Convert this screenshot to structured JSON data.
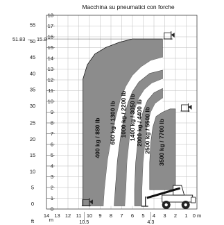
{
  "chart_data": {
    "type": "area",
    "title": "Macchina su pneumatici con forche",
    "y_unit_m": "m",
    "y_unit_ft": "ft",
    "x_unit": "m",
    "xlim": [
      14,
      0
    ],
    "ylim": [
      0,
      18
    ],
    "grid": true,
    "x_ticks": [
      14,
      13,
      12,
      11,
      10,
      9,
      8,
      7,
      6,
      5,
      4,
      3,
      2,
      1,
      0
    ],
    "x_tick_labels": [
      "14",
      "13",
      "12",
      "11",
      "10",
      "9",
      "8",
      "7",
      "6",
      "5",
      "4",
      "3",
      "2",
      "1",
      "0 m"
    ],
    "y_ticks": [
      0,
      1,
      2,
      3,
      4,
      5,
      6,
      7,
      8,
      9,
      10,
      11,
      12,
      13,
      14,
      15,
      16,
      17,
      18
    ],
    "ft_ticks": [
      {
        "label": "0",
        "m": 0.5
      },
      {
        "label": "5",
        "m": 2.0
      },
      {
        "label": "10",
        "m": 3.5
      },
      {
        "label": "15",
        "m": 5.0
      },
      {
        "label": "20",
        "m": 6.5
      },
      {
        "label": "25",
        "m": 8.0
      },
      {
        "label": "30",
        "m": 9.6
      },
      {
        "label": "35",
        "m": 11.1
      },
      {
        "label": "40",
        "m": 12.6
      },
      {
        "label": "45",
        "m": 14.1
      },
      {
        "label": "50",
        "m": 15.6
      },
      {
        "label": "55",
        "m": 17.1
      }
    ],
    "max_height_callout": {
      "ft": "51.83",
      "sep": "—",
      "m": "15.8",
      "y": 15.8
    },
    "sub_labels": [
      {
        "text": "10.5",
        "x": 10.5
      },
      {
        "text": "4.3",
        "x": 4.3
      }
    ],
    "series": [
      {
        "name": "400 kg / 880 lb",
        "color": "#8c8c8c",
        "outline": [
          [
            10.6,
            0.3
          ],
          [
            10.6,
            12.1
          ],
          [
            10.2,
            13.4
          ],
          [
            9.5,
            14.4
          ],
          [
            8.5,
            15.0
          ],
          [
            7.2,
            15.5
          ],
          [
            6.0,
            15.8
          ],
          [
            3.2,
            15.8
          ],
          [
            3.2,
            14.1
          ],
          [
            4.3,
            13.8
          ],
          [
            5.2,
            13.2
          ],
          [
            6.0,
            12.4
          ],
          [
            6.6,
            11.4
          ],
          [
            7.1,
            10.2
          ],
          [
            7.5,
            8.7
          ],
          [
            7.9,
            6.9
          ],
          [
            8.3,
            4.6
          ],
          [
            8.6,
            1.8
          ],
          [
            8.7,
            0.3
          ]
        ]
      },
      {
        "name": "600 kg / 1300 lb",
        "color": "#ffffff",
        "outline": [
          [
            8.7,
            0.3
          ],
          [
            8.6,
            1.8
          ],
          [
            8.3,
            4.6
          ],
          [
            7.9,
            6.9
          ],
          [
            7.5,
            8.7
          ],
          [
            7.1,
            10.2
          ],
          [
            6.6,
            11.4
          ],
          [
            6.0,
            12.4
          ],
          [
            5.2,
            13.2
          ],
          [
            4.3,
            13.8
          ],
          [
            3.2,
            14.1
          ],
          [
            3.2,
            12.9
          ],
          [
            4.4,
            12.6
          ],
          [
            5.4,
            11.8
          ],
          [
            6.0,
            10.9
          ],
          [
            6.4,
            9.9
          ],
          [
            6.8,
            8.5
          ],
          [
            7.1,
            6.7
          ],
          [
            7.4,
            4.5
          ],
          [
            7.6,
            1.8
          ],
          [
            7.7,
            0.3
          ]
        ]
      },
      {
        "name": "1000 kg / 2200 lb",
        "color": "#8c8c8c",
        "outline": [
          [
            7.7,
            0.3
          ],
          [
            7.6,
            1.8
          ],
          [
            7.4,
            4.5
          ],
          [
            7.1,
            6.7
          ],
          [
            6.8,
            8.5
          ],
          [
            6.4,
            9.9
          ],
          [
            6.0,
            10.9
          ],
          [
            5.4,
            11.8
          ],
          [
            4.4,
            12.6
          ],
          [
            3.2,
            12.9
          ],
          [
            3.2,
            12.1
          ],
          [
            4.2,
            11.7
          ],
          [
            4.9,
            11.1
          ],
          [
            5.4,
            10.3
          ],
          [
            5.8,
            9.2
          ],
          [
            6.1,
            7.9
          ],
          [
            6.3,
            6.3
          ],
          [
            6.5,
            4.4
          ],
          [
            6.6,
            1.8
          ],
          [
            6.7,
            0.3
          ]
        ]
      },
      {
        "name": "1400 kg / 3050 lb",
        "color": "#ffffff",
        "outline": [
          [
            6.7,
            0.3
          ],
          [
            6.6,
            1.8
          ],
          [
            6.5,
            4.4
          ],
          [
            6.3,
            6.3
          ],
          [
            6.1,
            7.9
          ],
          [
            5.8,
            9.2
          ],
          [
            5.4,
            10.3
          ],
          [
            4.9,
            11.1
          ],
          [
            4.2,
            11.7
          ],
          [
            3.2,
            12.1
          ],
          [
            3.2,
            11.2
          ],
          [
            4.0,
            10.8
          ],
          [
            4.6,
            10.1
          ],
          [
            5.0,
            9.1
          ],
          [
            5.3,
            7.9
          ],
          [
            5.5,
            6.3
          ],
          [
            5.7,
            4.3
          ],
          [
            5.8,
            1.8
          ],
          [
            5.8,
            0.3
          ]
        ]
      },
      {
        "name": "2000 kg / 4400 lb",
        "color": "#8c8c8c",
        "outline": [
          [
            5.8,
            0.3
          ],
          [
            5.8,
            1.8
          ],
          [
            5.7,
            4.3
          ],
          [
            5.5,
            6.3
          ],
          [
            5.3,
            7.9
          ],
          [
            5.0,
            9.1
          ],
          [
            4.6,
            10.1
          ],
          [
            4.0,
            10.8
          ],
          [
            3.2,
            11.2
          ],
          [
            3.2,
            10.3
          ],
          [
            3.9,
            9.8
          ],
          [
            4.3,
            9.0
          ],
          [
            4.6,
            7.8
          ],
          [
            4.8,
            6.3
          ],
          [
            5.0,
            4.3
          ],
          [
            5.1,
            1.8
          ],
          [
            5.1,
            0.3
          ]
        ]
      },
      {
        "name": "2500 kg / 5500 lb",
        "color": "#ffffff",
        "outline": [
          [
            5.1,
            0.3
          ],
          [
            5.1,
            1.8
          ],
          [
            5.0,
            4.3
          ],
          [
            4.8,
            6.3
          ],
          [
            4.6,
            7.8
          ],
          [
            4.3,
            9.0
          ],
          [
            3.9,
            9.8
          ],
          [
            3.2,
            10.3
          ],
          [
            3.2,
            9.0
          ],
          [
            3.8,
            8.6
          ],
          [
            4.1,
            7.6
          ],
          [
            4.3,
            6.2
          ],
          [
            4.4,
            4.3
          ],
          [
            4.4,
            1.8
          ],
          [
            4.4,
            0.3
          ]
        ]
      },
      {
        "name": "3500 kg / 7700 lb",
        "color": "#8c8c8c",
        "outline": [
          [
            4.4,
            1.8
          ],
          [
            4.4,
            4.3
          ],
          [
            4.3,
            6.2
          ],
          [
            4.1,
            7.6
          ],
          [
            3.8,
            8.6
          ],
          [
            3.2,
            9.0
          ],
          [
            2.5,
            9.3
          ],
          [
            2.0,
            9.3
          ],
          [
            2.0,
            1.8
          ]
        ]
      }
    ],
    "load_labels": [
      {
        "text": "400 kg / 880 lb",
        "x": 9.25,
        "y": 6.6
      },
      {
        "text": "600 kg / 1300 lb",
        "x": 7.85,
        "y": 8.0
      },
      {
        "text": "1000 kg / 2200 lb",
        "x": 6.85,
        "y": 8.8
      },
      {
        "text": "1400 kg / 3050 lb",
        "x": 6.0,
        "y": 8.5
      },
      {
        "text": "2000 kg / 4400 lb",
        "x": 5.35,
        "y": 8.0
      },
      {
        "text": "2500 kg / 5500 lb",
        "x": 4.6,
        "y": 7.3
      },
      {
        "text": "3500 kg / 7700 lb",
        "x": 3.3,
        "y": 6.2
      }
    ]
  }
}
